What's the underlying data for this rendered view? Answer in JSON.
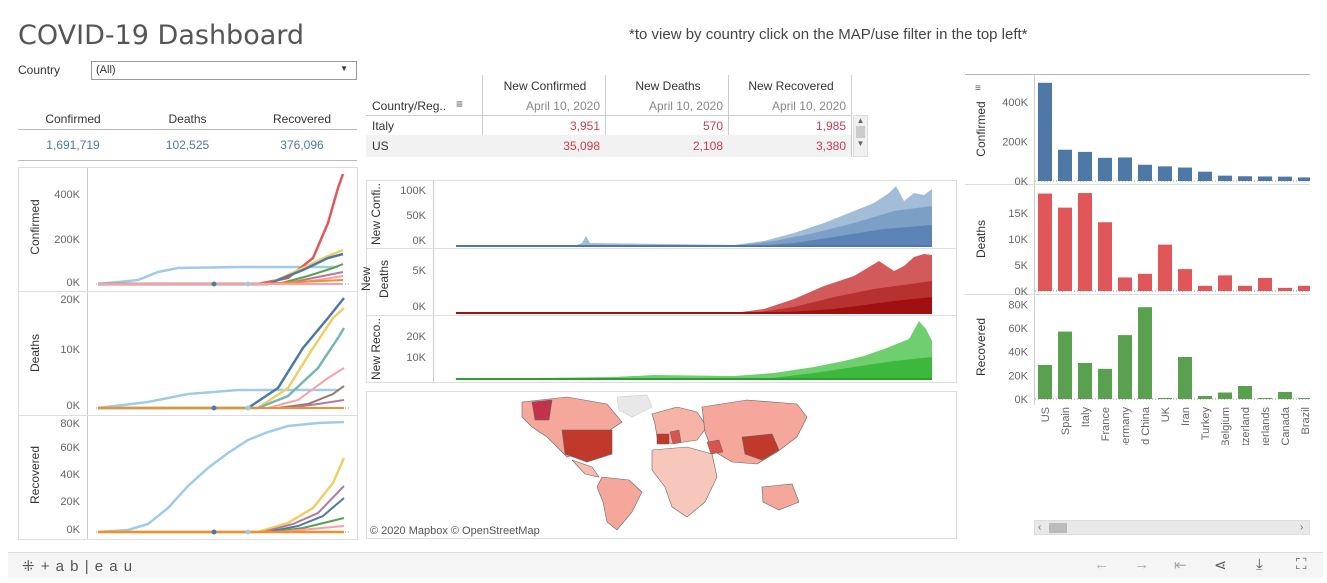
{
  "title": "COVID-19 Dashboard",
  "instruction": "*to view by country click on the MAP/use filter in the top left*",
  "filter": {
    "label": "Country",
    "value": "(All)"
  },
  "kpis": [
    {
      "label": "Confirmed",
      "value": "1,691,719"
    },
    {
      "label": "Deaths",
      "value": "102,525"
    },
    {
      "label": "Recovered",
      "value": "376,096"
    }
  ],
  "cumulative_charts": {
    "confirmed": {
      "ylabel": "Confirmed",
      "ticks": [
        "400K",
        "200K",
        "0K"
      ]
    },
    "deaths": {
      "ylabel": "Deaths",
      "ticks": [
        "20K",
        "10K",
        "0K"
      ]
    },
    "recovered": {
      "ylabel": "Recovered",
      "ticks": [
        "80K",
        "60K",
        "40K",
        "20K",
        "0K"
      ]
    }
  },
  "table": {
    "row_header": "Country/Reg..",
    "columns": [
      {
        "name": "New Confirmed",
        "date": "April 10, 2020"
      },
      {
        "name": "New Deaths",
        "date": "April 10, 2020"
      },
      {
        "name": "New Recovered",
        "date": "April 10, 2020"
      }
    ],
    "rows": [
      {
        "country": "Italy",
        "values": [
          "3,951",
          "570",
          "1,985"
        ]
      },
      {
        "country": "US",
        "values": [
          "35,098",
          "2,108",
          "3,380"
        ]
      }
    ]
  },
  "area_charts": {
    "confirmed": {
      "ylabel": "New Confi..",
      "ticks": [
        "100K",
        "50K",
        "0K"
      ]
    },
    "deaths": {
      "ylabel1": "New",
      "ylabel2": "Deaths",
      "ticks": [
        "5K",
        "0K"
      ]
    },
    "recovered": {
      "ylabel": "New Reco..",
      "ticks": [
        "20K",
        "10K"
      ]
    }
  },
  "map": {
    "attribution": "© 2020 Mapbox © OpenStreetMap"
  },
  "chart_data": [
    {
      "type": "bar",
      "title": "",
      "ylabel": "Confirmed",
      "categories": [
        "US",
        "Spain",
        "Italy",
        "France",
        "Germany",
        "Mainland China",
        "UK",
        "Iran",
        "Turkey",
        "Belgium",
        "Switzerland",
        "Netherlands",
        "Canada",
        "Brazil"
      ],
      "values": [
        496000,
        158000,
        147000,
        117000,
        119000,
        82000,
        74000,
        68000,
        47000,
        27000,
        24000,
        23000,
        22000,
        18000
      ],
      "ticks": [
        "400K",
        "200K",
        "0K"
      ],
      "ylim": [
        0,
        500000
      ],
      "color": "#4e79a7"
    },
    {
      "type": "bar",
      "title": "",
      "ylabel": "Deaths",
      "categories": [
        "US",
        "Spain",
        "Italy",
        "France",
        "Germany",
        "Mainland China",
        "UK",
        "Iran",
        "Turkey",
        "Belgium",
        "Switzerland",
        "Netherlands",
        "Canada",
        "Brazil"
      ],
      "values": [
        18700,
        16000,
        18800,
        13200,
        2600,
        3300,
        8900,
        4200,
        1000,
        3000,
        1000,
        2500,
        600,
        1000
      ],
      "ticks": [
        "15K",
        "10K",
        "5K",
        "0K"
      ],
      "ylim": [
        0,
        19000
      ],
      "color": "#e15759"
    },
    {
      "type": "bar",
      "title": "",
      "ylabel": "Recovered",
      "categories": [
        "US",
        "Spain",
        "Italy",
        "France",
        "Germany",
        "Mainland China",
        "UK",
        "Iran",
        "Turkey",
        "Belgium",
        "Switzerland",
        "Netherlands",
        "Canada",
        "Brazil"
      ],
      "values": [
        28800,
        57000,
        30500,
        25500,
        54000,
        77600,
        700,
        35500,
        2600,
        5500,
        11000,
        300,
        6000,
        200
      ],
      "ticks": [
        "80K",
        "60K",
        "40K",
        "20K",
        "0K"
      ],
      "ylim": [
        0,
        82000
      ],
      "color": "#59a14f"
    }
  ],
  "footer": {
    "brand": "+ a b | e a u"
  }
}
